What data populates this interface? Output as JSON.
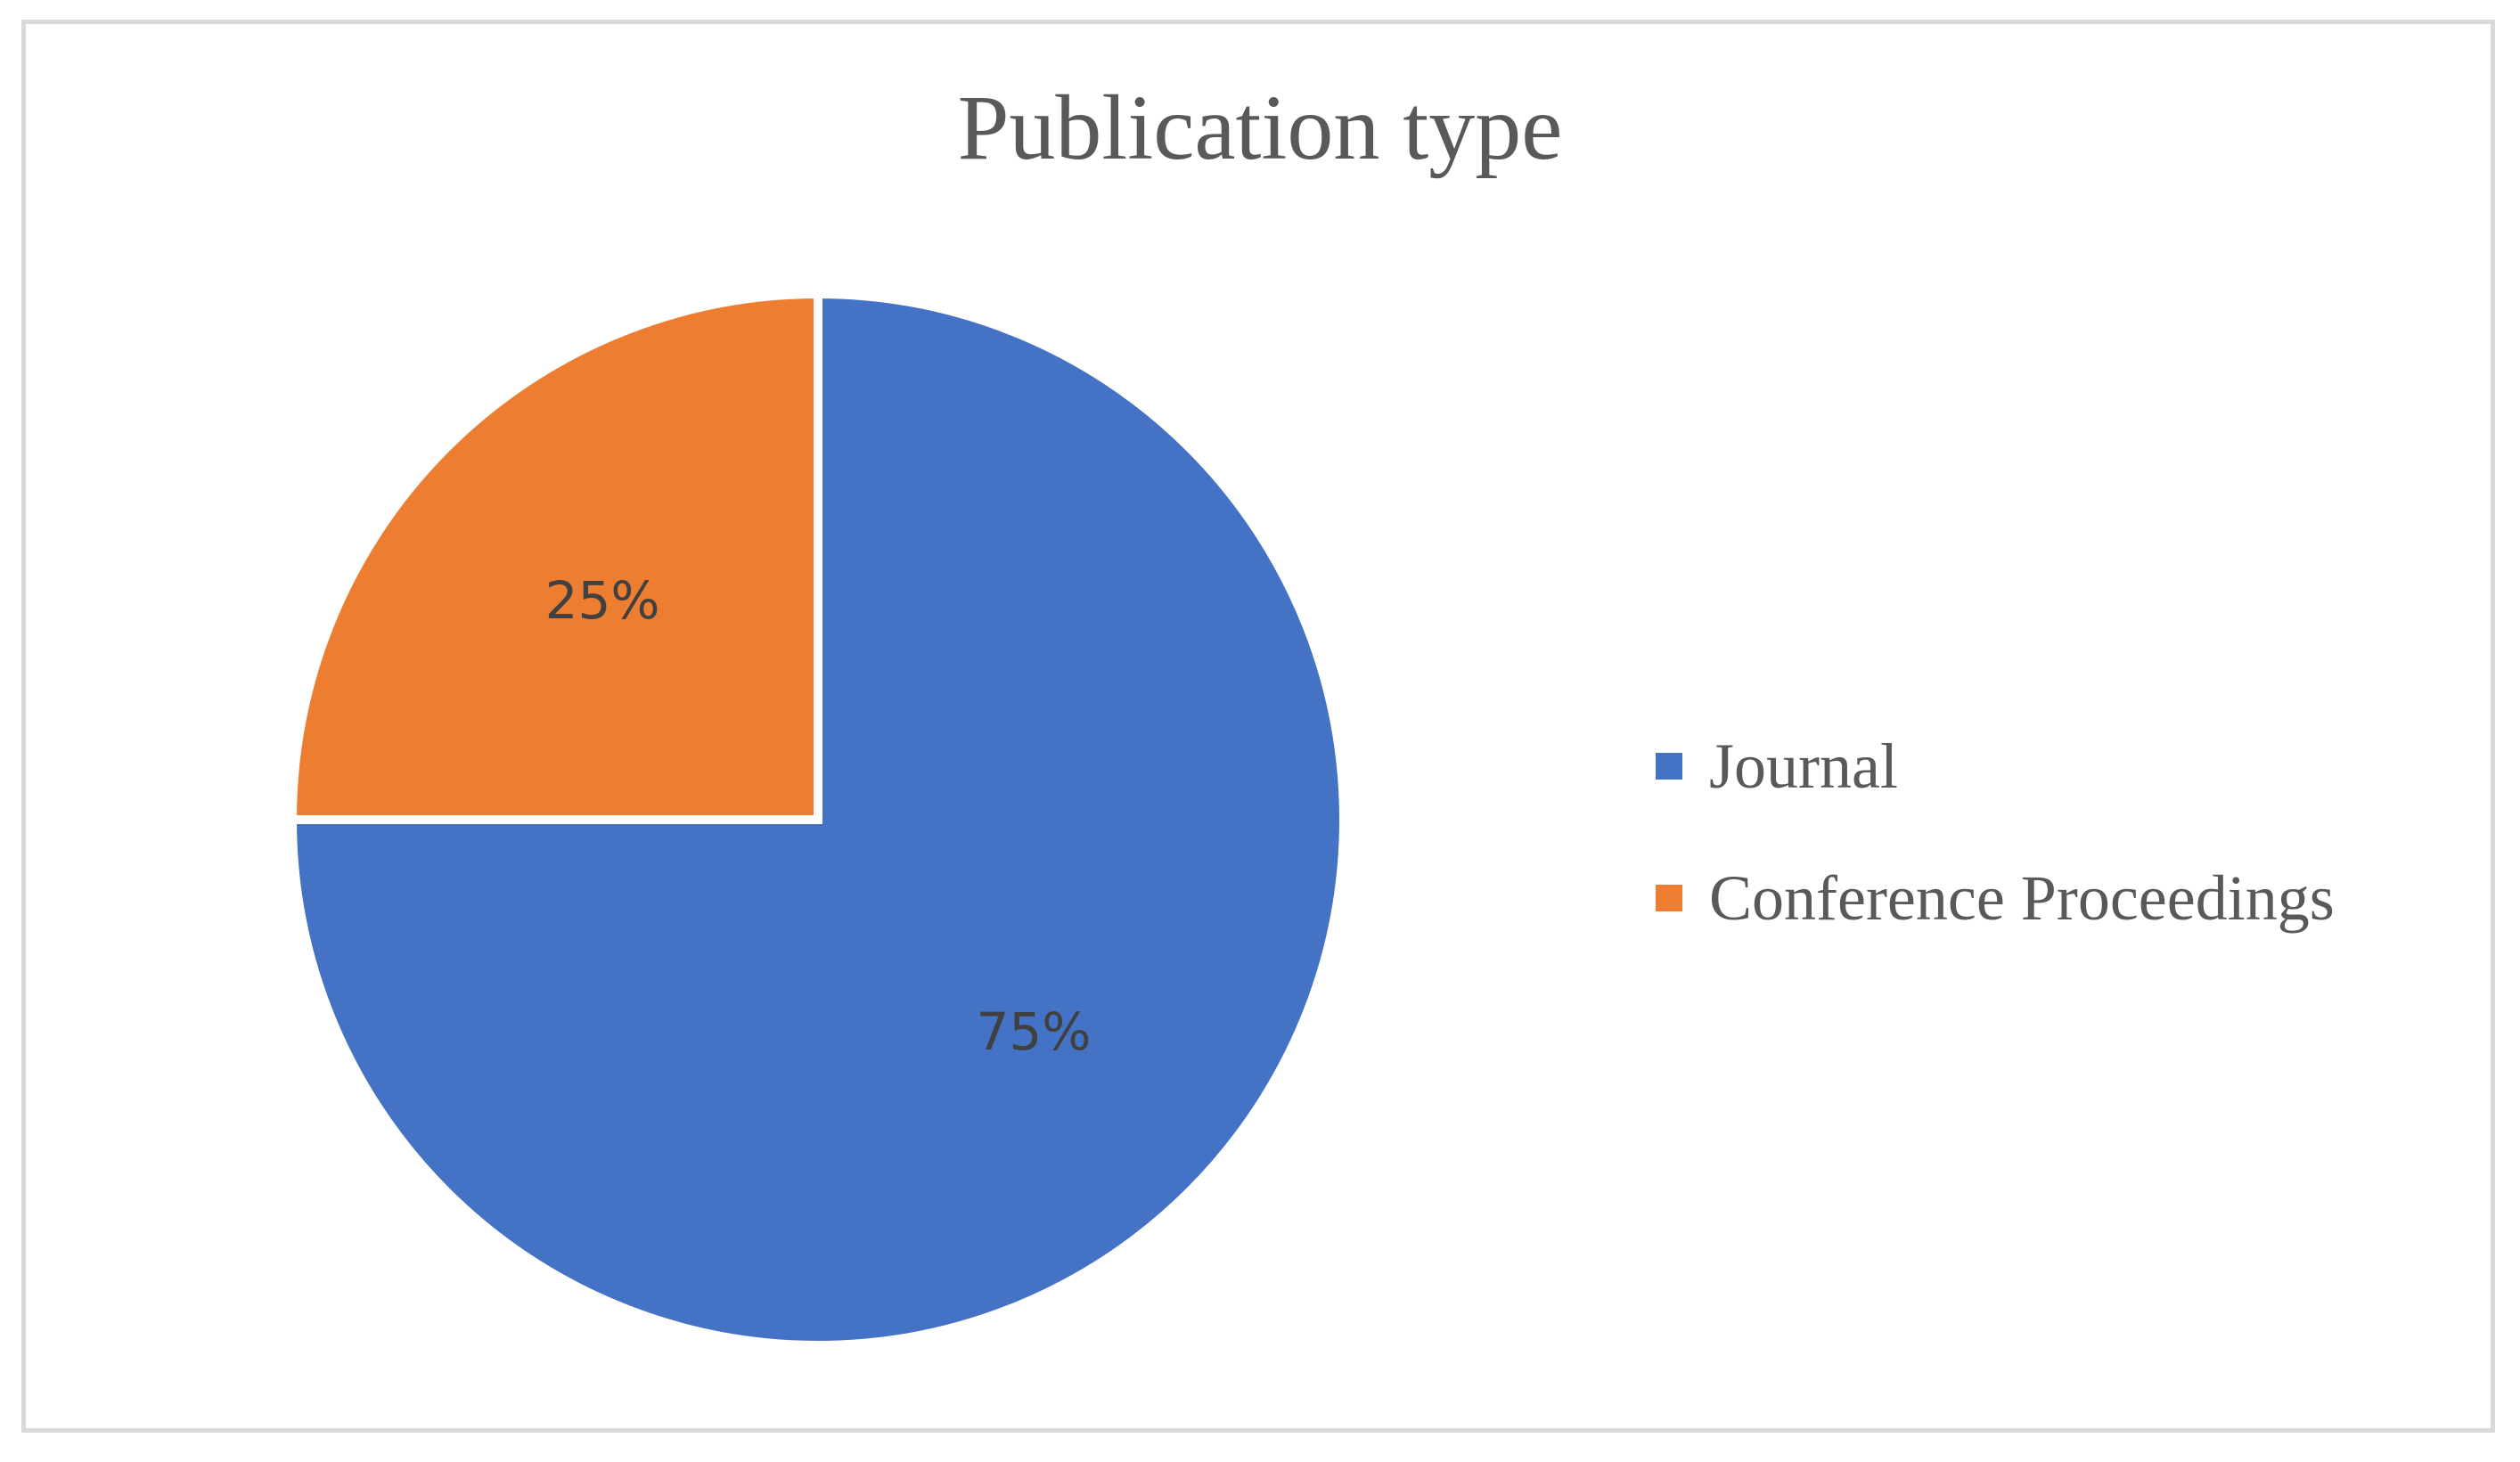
{
  "chart_data": {
    "type": "pie",
    "title": "Publication type",
    "slices": [
      {
        "name": "Journal",
        "value": 75,
        "label": "75%",
        "color": "#4472C4"
      },
      {
        "name": "Conference Proceedings",
        "value": 25,
        "label": "25%",
        "color": "#ED7D31"
      }
    ],
    "legend_position": "right"
  }
}
